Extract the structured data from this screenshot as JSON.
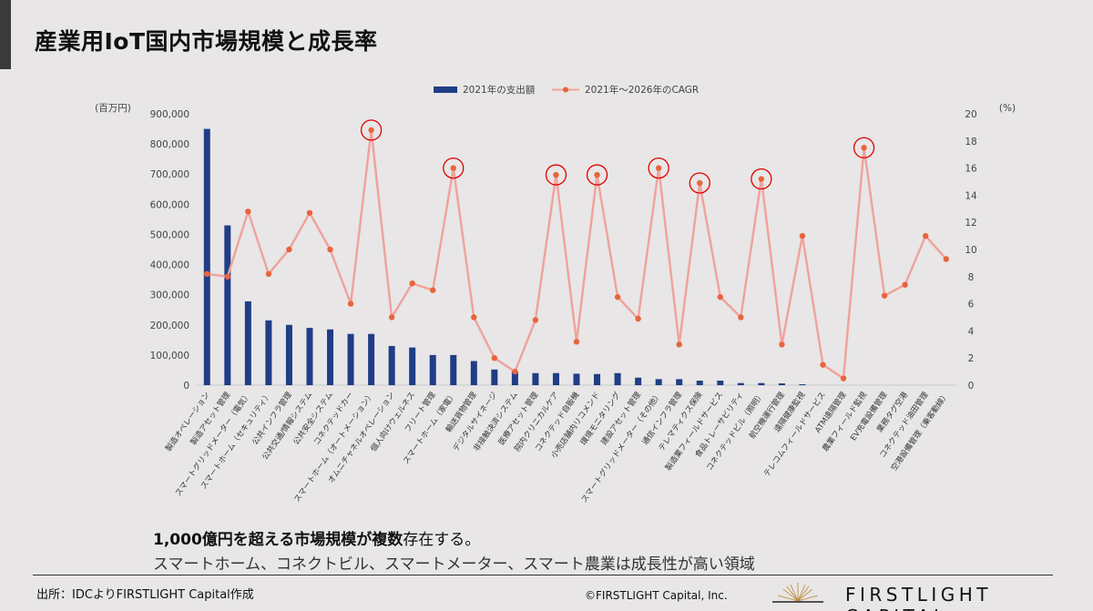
{
  "title": "産業用IoT国内市場規模と成長率",
  "summary": {
    "line1_bold": "1,000億円を超える市場規模が複数",
    "line1_rest": "存在する。",
    "line2": "スマートホーム、コネクトビル、スマートメーター、スマート農業は成長性が高い領域"
  },
  "footer": {
    "source": "出所：IDCよりFIRSTLIGHT Capital作成",
    "copyright": "©FIRSTLIGHT Capital, Inc.",
    "brand": "FIRSTLIGHT CAPITAL"
  },
  "chart_data": {
    "type": "bar",
    "y_left_unit": "(百万円)",
    "y_right_unit": "(%)",
    "y_left_range": [
      0,
      900000
    ],
    "y_left_ticks": [
      "0",
      "100,000",
      "200,000",
      "300,000",
      "400,000",
      "500,000",
      "600,000",
      "700,000",
      "800,000",
      "900,000"
    ],
    "y_right_range": [
      0,
      20
    ],
    "y_right_ticks": [
      "0",
      "2",
      "4",
      "6",
      "8",
      "10",
      "12",
      "14",
      "16",
      "18",
      "20"
    ],
    "legend_position": "top-center",
    "bar_color": "#1f3d87",
    "line_color": "#f0a29b",
    "marker_color": "#e8643c",
    "highlight_color": "#e00000",
    "categories": [
      "製造オペレーション",
      "製造アセット管理",
      "スマートグリッドメーター（電気）",
      "スマートホーム（セキュリティ）",
      "公共インフラ管理",
      "公共交通/情報システム",
      "公共安全システム",
      "コネクテッドカー",
      "スマートホーム（オートメーション）",
      "オムニチャネルオペレーション",
      "個人向けウェルネス",
      "フリート管理",
      "スマートホーム（家電）",
      "輸送貨物管理",
      "デジタルサイネージ",
      "非接触決済システム",
      "医療アセット管理",
      "院内クリニカルケア",
      "コネクテッド自販機",
      "小売店舗内リコメンド",
      "環境モニタリング",
      "建設アセット管理",
      "スマートグリッドメーター（その他）",
      "通信インフラ管理",
      "テレマティクス保険",
      "製造業フィールドサービス",
      "食品トレーサビリティ",
      "コネクテッドビル（照明）",
      "航空機運行管理",
      "遠隔健康監視",
      "テレコムフィールドサービス",
      "ATM遠隔管理",
      "農業フィールド監視",
      "EV充電設備管理",
      "業務タグ空港",
      "コネクテッド油田管理",
      "空港設備管理（乗客動線）"
    ],
    "series": [
      {
        "name": "2021年の支出額",
        "type": "bar",
        "axis": "left",
        "values": [
          850000,
          530000,
          278000,
          215000,
          200000,
          190000,
          185000,
          170000,
          170000,
          130000,
          125000,
          100000,
          100000,
          80000,
          52000,
          45000,
          40000,
          40000,
          38000,
          37000,
          40000,
          25000,
          20000,
          20000,
          15000,
          15000,
          7000,
          7000,
          6000,
          3000,
          0,
          0,
          0,
          0,
          0,
          0,
          0
        ]
      },
      {
        "name": "2021年～2026年のCAGR",
        "type": "line",
        "axis": "right",
        "values": [
          8.2,
          8.0,
          12.8,
          8.2,
          10.0,
          12.7,
          10.0,
          6.0,
          18.8,
          5.0,
          7.5,
          7.0,
          16.0,
          5.0,
          2.0,
          1.0,
          4.8,
          15.5,
          3.2,
          15.5,
          6.5,
          4.9,
          16.0,
          3.0,
          14.9,
          6.5,
          5.0,
          15.2,
          3.0,
          11.0,
          1.5,
          0.5,
          17.5,
          6.6,
          7.4,
          11.0,
          9.3
        ]
      }
    ],
    "highlighted_indices": [
      8,
      12,
      17,
      19,
      22,
      24,
      27,
      32
    ]
  }
}
